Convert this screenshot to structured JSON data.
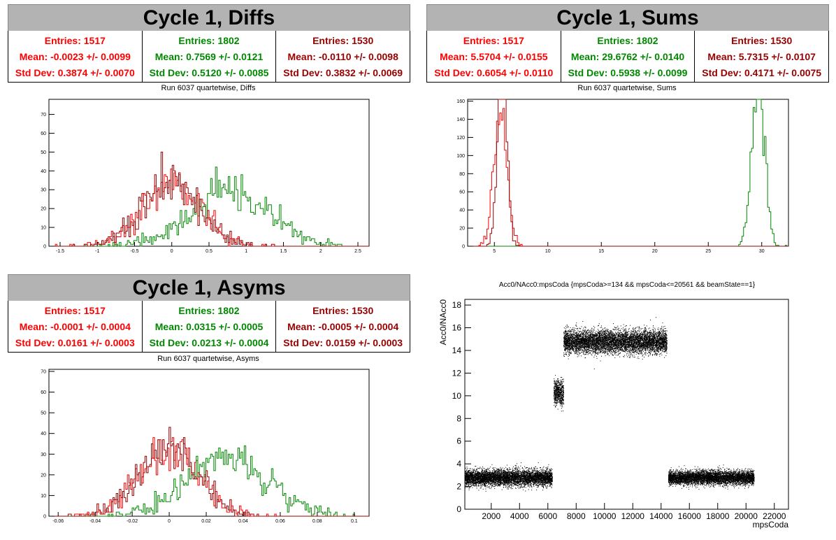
{
  "panels": [
    {
      "title": "Cycle 1, Diffs",
      "subtitle": "Run 6037 quartetwise, Diffs",
      "stats": [
        {
          "entries": "Entries: 1517",
          "mean": "Mean: -0.0023 +/- 0.0099",
          "std": "Std Dev: 0.3874 +/- 0.0070",
          "color": "#ff0000"
        },
        {
          "entries": "Entries: 1802",
          "mean": "Mean: 0.7569 +/- 0.0121",
          "std": "Std Dev: 0.5120 +/- 0.0085",
          "color": "#008800"
        },
        {
          "entries": "Entries: 1530",
          "mean": "Mean: -0.0110 +/- 0.0098",
          "std": "Std Dev: 0.3832 +/- 0.0069",
          "color": "#990000"
        }
      ]
    },
    {
      "title": "Cycle 1, Sums",
      "subtitle": "Run 6037 quartetwise, Sums",
      "stats": [
        {
          "entries": "Entries: 1517",
          "mean": "Mean: 5.5704 +/- 0.0155",
          "std": "Std Dev: 0.6054 +/- 0.0110",
          "color": "#ff0000"
        },
        {
          "entries": "Entries: 1802",
          "mean": "Mean: 29.6762 +/- 0.0140",
          "std": "Std Dev: 0.5938 +/- 0.0099",
          "color": "#008800"
        },
        {
          "entries": "Entries: 1530",
          "mean": "Mean: 5.7315 +/- 0.0107",
          "std": "Std Dev: 0.4171 +/- 0.0075",
          "color": "#990000"
        }
      ]
    },
    {
      "title": "Cycle 1, Asyms",
      "subtitle": "Run 6037 quartetwise, Asyms",
      "stats": [
        {
          "entries": "Entries: 1517",
          "mean": "Mean: -0.0001 +/- 0.0004",
          "std": "Std Dev: 0.0161 +/- 0.0003",
          "color": "#ff0000"
        },
        {
          "entries": "Entries: 1802",
          "mean": "Mean: 0.0315 +/- 0.0005",
          "std": "Std Dev: 0.0213 +/- 0.0004",
          "color": "#008800"
        },
        {
          "entries": "Entries: 1530",
          "mean": "Mean: -0.0005 +/- 0.0004",
          "std": "Std Dev: 0.0159 +/- 0.0003",
          "color": "#990000"
        }
      ]
    }
  ],
  "chart_data": [
    {
      "type": "histogram",
      "xlim": [
        -1.65,
        2.65
      ],
      "ylim": [
        0,
        78
      ],
      "xticks": [
        -1.5,
        -1,
        -0.5,
        0,
        0.5,
        1,
        1.5,
        2,
        2.5
      ],
      "yticks": [
        0,
        10,
        20,
        30,
        40,
        50,
        60,
        70
      ],
      "series": [
        {
          "color": "#ff0000",
          "mean": -0.0023,
          "std": 0.3874,
          "entries": 1517
        },
        {
          "color": "#008800",
          "mean": 0.7569,
          "std": 0.512,
          "entries": 1802
        },
        {
          "color": "#990000",
          "mean": -0.011,
          "std": 0.3832,
          "entries": 1530
        }
      ]
    },
    {
      "type": "histogram",
      "xlim": [
        2.5,
        32.5
      ],
      "ylim": [
        0,
        162
      ],
      "xticks": [
        5,
        10,
        15,
        20,
        25,
        30
      ],
      "yticks": [
        0,
        20,
        40,
        60,
        80,
        100,
        120,
        140,
        160
      ],
      "series": [
        {
          "color": "#ff0000",
          "mean": 5.5704,
          "std": 0.6054,
          "entries": 1517
        },
        {
          "color": "#008800",
          "mean": 29.6762,
          "std": 0.5938,
          "entries": 1802
        },
        {
          "color": "#990000",
          "mean": 5.7315,
          "std": 0.4171,
          "entries": 1530
        }
      ]
    },
    {
      "type": "histogram",
      "xlim": [
        -0.065,
        0.108
      ],
      "ylim": [
        0,
        71
      ],
      "xticks": [
        -0.06,
        -0.04,
        -0.02,
        0,
        0.02,
        0.04,
        0.06,
        0.08,
        0.1
      ],
      "yticks": [
        0,
        10,
        20,
        30,
        40,
        50,
        60,
        70
      ],
      "series": [
        {
          "color": "#ff0000",
          "mean": -0.0001,
          "std": 0.0161,
          "entries": 1517
        },
        {
          "color": "#008800",
          "mean": 0.0315,
          "std": 0.0213,
          "entries": 1802
        },
        {
          "color": "#990000",
          "mean": -0.0005,
          "std": 0.0159,
          "entries": 1530
        }
      ]
    },
    {
      "type": "scatter",
      "title": "Acc0/NAcc0:mpsCoda {mpsCoda>=134 && mpsCoda<=20561 && beamState==1}",
      "xlabel": "mpsCoda",
      "ylabel": "Acc0/NAcc0",
      "xlim": [
        134,
        23000
      ],
      "ylim": [
        0,
        18.5
      ],
      "xticks": [
        2000,
        4000,
        6000,
        8000,
        10000,
        12000,
        14000,
        16000,
        18000,
        20000,
        22000
      ],
      "yticks": [
        0,
        2,
        4,
        6,
        8,
        10,
        12,
        14,
        16,
        18
      ],
      "clusters": [
        {
          "x": [
            134,
            6300
          ],
          "y_mean": 2.8,
          "y_spread": 0.35
        },
        {
          "x": [
            6400,
            7100
          ],
          "y_mean": 10.3,
          "y_spread": 0.55
        },
        {
          "x": [
            7100,
            14400
          ],
          "y_mean": 14.8,
          "y_spread": 0.5
        },
        {
          "x": [
            14500,
            20561
          ],
          "y_mean": 2.8,
          "y_spread": 0.3
        }
      ]
    }
  ]
}
